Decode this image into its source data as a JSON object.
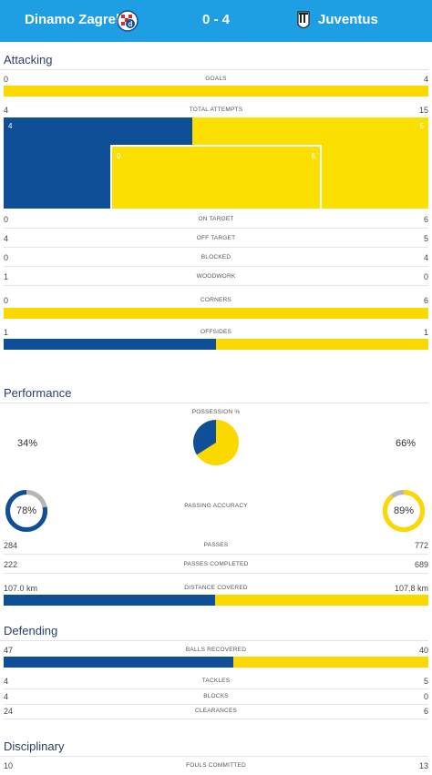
{
  "header": {
    "home_team": "Dinamo Zagreb",
    "away_team": "Juventus",
    "score": "0 - 4",
    "home_color": "#0f4f98",
    "away_color": "#fbd800",
    "accent": "#1f9fe3"
  },
  "attacking": {
    "title": "Attacking",
    "goals": {
      "label": "GOALS",
      "home": "0",
      "away": "4",
      "home_share": 0
    },
    "total_attempts": {
      "label": "TOTAL ATTEMPTS",
      "home": "4",
      "away": "15",
      "home_block": "4",
      "away_block": "5",
      "home_on_target": "0",
      "away_on_target": "6"
    },
    "on_target": {
      "label": "ON TARGET",
      "home": "0",
      "away": "6"
    },
    "off_target": {
      "label": "OFF TARGET",
      "home": "4",
      "away": "5"
    },
    "blocked": {
      "label": "BLOCKED",
      "home": "0",
      "away": "4"
    },
    "woodwork": {
      "label": "WOODWORK",
      "home": "1",
      "away": "0"
    },
    "corners": {
      "label": "CORNERS",
      "home": "0",
      "away": "6",
      "home_share": 0
    },
    "offsides": {
      "label": "OFFSIDES",
      "home": "1",
      "away": "1",
      "home_share": 0.5
    }
  },
  "performance": {
    "title": "Performance",
    "possession": {
      "label": "POSSESSION %",
      "home": "34%",
      "away": "66%",
      "home_share": 0.34
    },
    "passing_accuracy": {
      "label": "PASSING ACCURACY",
      "home": "78%",
      "away": "89%",
      "home_value": 0.78,
      "away_value": 0.89
    },
    "passes": {
      "label": "PASSES",
      "home": "284",
      "away": "772"
    },
    "passes_completed": {
      "label": "PASSES COMPLETED",
      "home": "222",
      "away": "689"
    },
    "distance_covered": {
      "label": "DISTANCE COVERED",
      "home": "107.0 km",
      "away": "107.8 km",
      "home_share": 0.498
    }
  },
  "defending": {
    "title": "Defending",
    "balls_recovered": {
      "label": "BALLS RECOVERED",
      "home": "47",
      "away": "40",
      "home_share": 0.54
    },
    "tackles": {
      "label": "TACKLES",
      "home": "4",
      "away": "5"
    },
    "blocks": {
      "label": "BLOCKS",
      "home": "4",
      "away": "0"
    },
    "clearances": {
      "label": "CLEARANCES",
      "home": "24",
      "away": "6"
    }
  },
  "disciplinary": {
    "title": "Disciplinary",
    "fouls_committed": {
      "label": "FOULS COMMITTED",
      "home": "10",
      "away": "13"
    }
  }
}
